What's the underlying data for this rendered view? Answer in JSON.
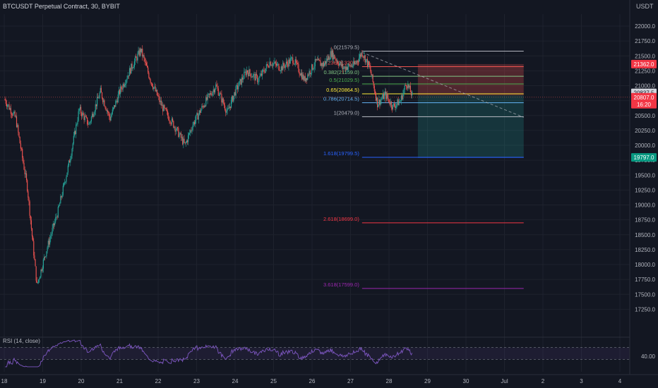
{
  "header": {
    "title": "BTCUSDT Perpetual Contract, 30, BYBIT",
    "currency": "USDT"
  },
  "colors": {
    "background": "#131722",
    "grid": "#1e222d",
    "bull": "#26a69a",
    "bear": "#ef5350",
    "axis_text": "#b2b5be",
    "rsi": "#7e57c2"
  },
  "chart_data": {
    "type": "candlestick",
    "symbol": "BTCUSDT Perpetual Contract",
    "timeframe": "30",
    "exchange": "BYBIT",
    "y_ticks": [
      22000.0,
      21750.0,
      21500.0,
      21250.0,
      21000.0,
      20750.0,
      20500.0,
      20250.0,
      20000.0,
      19750.0,
      19500.0,
      19250.0,
      19000.0,
      18750.0,
      18500.0,
      18250.0,
      18000.0,
      17750.0,
      17500.0,
      17250.0
    ],
    "x_ticks": [
      "18",
      "19",
      "20",
      "21",
      "22",
      "23",
      "24",
      "25",
      "26",
      "27",
      "28",
      "29",
      "30",
      "Jul",
      "2",
      "3",
      "4"
    ],
    "price_path": [
      {
        "day": 18.0,
        "price": 20780
      },
      {
        "day": 18.3,
        "price": 20450
      },
      {
        "day": 18.6,
        "price": 19300
      },
      {
        "day": 18.85,
        "price": 17650
      },
      {
        "day": 19.1,
        "price": 18250
      },
      {
        "day": 19.4,
        "price": 18900
      },
      {
        "day": 19.7,
        "price": 19750
      },
      {
        "day": 19.95,
        "price": 20600
      },
      {
        "day": 20.2,
        "price": 20350
      },
      {
        "day": 20.5,
        "price": 20900
      },
      {
        "day": 20.75,
        "price": 20450
      },
      {
        "day": 21.0,
        "price": 20900
      },
      {
        "day": 21.3,
        "price": 21300
      },
      {
        "day": 21.55,
        "price": 21600
      },
      {
        "day": 21.8,
        "price": 21100
      },
      {
        "day": 22.1,
        "price": 20650
      },
      {
        "day": 22.4,
        "price": 20350
      },
      {
        "day": 22.7,
        "price": 20000
      },
      {
        "day": 22.9,
        "price": 20350
      },
      {
        "day": 23.2,
        "price": 20700
      },
      {
        "day": 23.5,
        "price": 21000
      },
      {
        "day": 23.8,
        "price": 20550
      },
      {
        "day": 24.0,
        "price": 20900
      },
      {
        "day": 24.3,
        "price": 21250
      },
      {
        "day": 24.6,
        "price": 21100
      },
      {
        "day": 24.9,
        "price": 21400
      },
      {
        "day": 25.2,
        "price": 21300
      },
      {
        "day": 25.5,
        "price": 21450
      },
      {
        "day": 25.8,
        "price": 21100
      },
      {
        "day": 26.1,
        "price": 21400
      },
      {
        "day": 26.3,
        "price": 21350
      },
      {
        "day": 26.5,
        "price": 21550
      },
      {
        "day": 26.8,
        "price": 21300
      },
      {
        "day": 27.1,
        "price": 21350
      },
      {
        "day": 27.3,
        "price": 21560
      },
      {
        "day": 27.5,
        "price": 21300
      },
      {
        "day": 27.7,
        "price": 20700
      },
      {
        "day": 27.9,
        "price": 20850
      },
      {
        "day": 28.1,
        "price": 20650
      },
      {
        "day": 28.3,
        "price": 20750
      },
      {
        "day": 28.45,
        "price": 21050
      },
      {
        "day": 28.6,
        "price": 20840
      }
    ],
    "last_price": "20837.5",
    "current_price": "20807.0",
    "countdown": "16:20",
    "position": {
      "entry": 20837.5,
      "stop": 21362.0,
      "target": 19797.0,
      "stop_label": "21362.0",
      "target_label": "19797.0",
      "start_day": 28.75,
      "end_day": 31.5
    },
    "trendline": [
      {
        "day": 27.3,
        "price": 21560
      },
      {
        "day": 31.5,
        "price": 20470
      }
    ],
    "fib_levels": [
      {
        "label": "0(21579.5)",
        "ratio": "0",
        "price": 21579.5,
        "color": "#b2b5be"
      },
      {
        "label": "0.236(21320.0)",
        "ratio": "0.236",
        "price": 21320.0,
        "color": "#ef5350"
      },
      {
        "label": "0.382(21159.0)",
        "ratio": "0.382",
        "price": 21159.0,
        "color": "#81c784"
      },
      {
        "label": "0.5(21029.5)",
        "ratio": "0.5",
        "price": 21029.5,
        "color": "#4caf50"
      },
      {
        "label": "0.65(20864.5)",
        "ratio": "0.65",
        "price": 20864.5,
        "color": "#ffeb3b"
      },
      {
        "label": "0.786(20714.5)",
        "ratio": "0.786",
        "price": 20714.5,
        "color": "#64b5f6"
      },
      {
        "label": "1(20479.0)",
        "ratio": "1",
        "price": 20479.0,
        "color": "#b2b5be"
      },
      {
        "label": "1.618(19799.5)",
        "ratio": "1.618",
        "price": 19799.5,
        "color": "#2962ff"
      },
      {
        "label": "2.618(18699.0)",
        "ratio": "2.618",
        "price": 18699.0,
        "color": "#f23645"
      },
      {
        "label": "3.618(17599.0)",
        "ratio": "3.618",
        "price": 17599.0,
        "color": "#9c27b0"
      }
    ],
    "fib_start_day": 27.3,
    "fib_end_day": 31.5,
    "rsi": {
      "label": "RSI (14, close)",
      "value": "40.00",
      "upper": 70,
      "lower": 30
    }
  }
}
